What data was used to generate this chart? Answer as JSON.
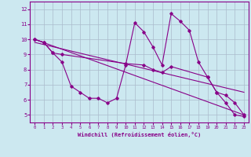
{
  "xlabel": "Windchill (Refroidissement éolien,°C)",
  "bg_color": "#cce8f0",
  "line_color": "#880088",
  "grid_color": "#aabbcc",
  "xlim": [
    -0.5,
    23.5
  ],
  "ylim": [
    4.5,
    12.5
  ],
  "yticks": [
    5,
    6,
    7,
    8,
    9,
    10,
    11,
    12
  ],
  "xticks": [
    0,
    1,
    2,
    3,
    4,
    5,
    6,
    7,
    8,
    9,
    10,
    11,
    12,
    13,
    14,
    15,
    16,
    17,
    18,
    19,
    20,
    21,
    22,
    23
  ],
  "line1_x": [
    0,
    1,
    2,
    3,
    4,
    5,
    6,
    7,
    8,
    9,
    10,
    11,
    12,
    13,
    14,
    15,
    16,
    17,
    18,
    19,
    20,
    21,
    22,
    23
  ],
  "line1_y": [
    10.0,
    9.8,
    9.1,
    8.5,
    6.9,
    6.5,
    6.1,
    6.1,
    5.8,
    6.1,
    8.3,
    11.1,
    10.5,
    9.5,
    8.3,
    11.7,
    11.2,
    10.6,
    8.5,
    7.5,
    6.5,
    5.8,
    5.0,
    4.9
  ],
  "line2_x": [
    0,
    1,
    2,
    3,
    10,
    12,
    13,
    14,
    15,
    19,
    20,
    21,
    22,
    23
  ],
  "line2_y": [
    10.0,
    9.8,
    9.1,
    9.0,
    8.4,
    8.3,
    8.0,
    7.8,
    8.2,
    7.5,
    6.5,
    6.3,
    5.8,
    5.0
  ],
  "line3_x": [
    0,
    23
  ],
  "line3_y": [
    10.0,
    5.0
  ],
  "line4_x": [
    0,
    23
  ],
  "line4_y": [
    9.8,
    6.5
  ]
}
